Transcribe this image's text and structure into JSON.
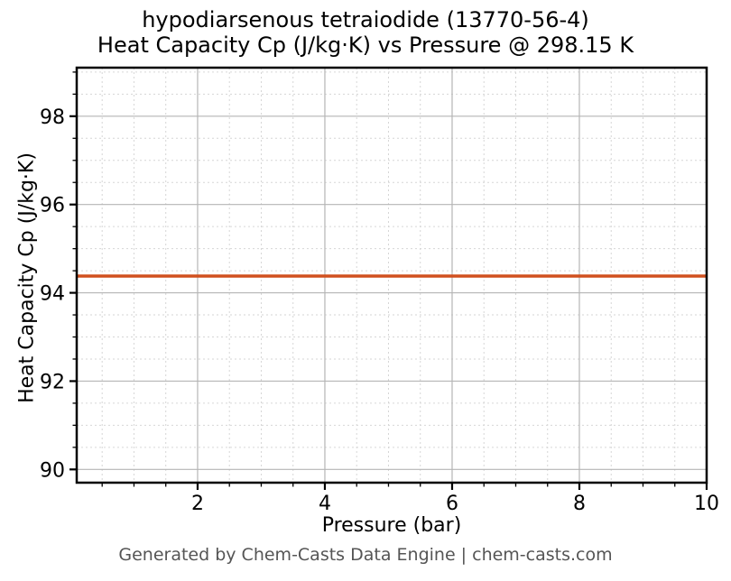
{
  "colors": {
    "line": "#d0501f",
    "grid_major": "#b5b5b5",
    "grid_minor": "#d6d6d6",
    "spine": "#000000",
    "tick": "#000000",
    "text": "#000000",
    "footer_text": "#555555",
    "background": "#ffffff"
  },
  "chart_data": {
    "type": "line",
    "title_line1": "hypodiarsenous tetraiodide (13770-56-4)",
    "title_line2": "Heat Capacity Cp (J/kg·K) vs Pressure @ 298.15 K",
    "substance": "hypodiarsenous tetraiodide",
    "cas_number": "13770-56-4",
    "temperature": "298.15 K",
    "xlabel": "Pressure (bar)",
    "ylabel": "Heat Capacity Cp (J/kg·K)",
    "footer": "Generated by Chem-Casts Data Engine | chem-casts.com",
    "xlim": [
      0.1,
      10
    ],
    "ylim": [
      89.7,
      99.1
    ],
    "x_major_ticks": [
      2,
      4,
      6,
      8,
      10
    ],
    "y_major_ticks": [
      90,
      92,
      94,
      96,
      98
    ],
    "minor_tick_step": 0.5,
    "grid": {
      "major": true,
      "minor": true
    },
    "legend_position": "none",
    "constant_value": 94.38,
    "series": [
      {
        "name": "Heat Capacity Cp",
        "color": "#d0501f",
        "linewidth": 3.5,
        "x": [
          0.1,
          10
        ],
        "y": [
          94.38,
          94.38
        ]
      }
    ]
  }
}
